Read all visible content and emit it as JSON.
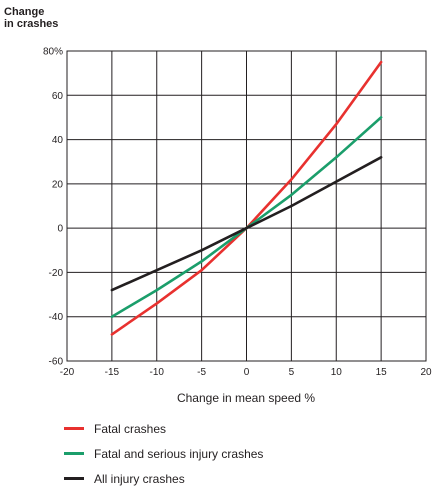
{
  "chart_data": {
    "type": "line",
    "ylabel": "Change\nin crashes",
    "xlabel": "Change in mean speed %",
    "xlim": [
      -20,
      20
    ],
    "ylim": [
      -60,
      80
    ],
    "x_ticks": [
      -20,
      -15,
      -10,
      -5,
      0,
      5,
      10,
      15,
      20
    ],
    "x_tick_labels": [
      "-20",
      "-15",
      "-10",
      "-5",
      "0",
      "5",
      "10",
      "15",
      "20"
    ],
    "y_ticks": [
      -60,
      -40,
      -20,
      0,
      20,
      40,
      60,
      80
    ],
    "y_tick_labels": [
      "-60",
      "-40",
      "-20",
      "0",
      "20",
      "40",
      "60",
      "80%"
    ],
    "grid": true,
    "legend_position": "bottom",
    "series": [
      {
        "name": "Fatal crashes",
        "color": "#e8312f",
        "x": [
          -15,
          -10,
          -5,
          0,
          5,
          10,
          15
        ],
        "y": [
          -48,
          -34,
          -19,
          0,
          22,
          47,
          75
        ]
      },
      {
        "name": "Fatal and serious injury crashes",
        "color": "#1b9e6b",
        "x": [
          -15,
          -10,
          -5,
          0,
          5,
          10,
          15
        ],
        "y": [
          -40,
          -28,
          -15,
          0,
          15,
          32,
          50
        ]
      },
      {
        "name": "All injury crashes",
        "color": "#231f20",
        "x": [
          -15,
          -10,
          -5,
          0,
          5,
          10,
          15
        ],
        "y": [
          -28,
          -19,
          -10,
          0,
          10,
          21,
          32
        ]
      }
    ]
  }
}
